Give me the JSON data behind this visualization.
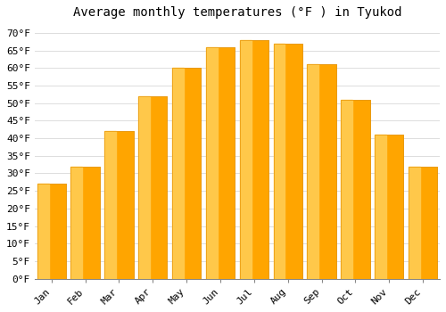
{
  "title": "Average monthly temperatures (°F ) in Tyukod",
  "months": [
    "Jan",
    "Feb",
    "Mar",
    "Apr",
    "May",
    "Jun",
    "Jul",
    "Aug",
    "Sep",
    "Oct",
    "Nov",
    "Dec"
  ],
  "values": [
    27,
    32,
    42,
    52,
    60,
    66,
    68,
    67,
    61,
    51,
    41,
    32
  ],
  "bar_color_main": "#FFA500",
  "bar_color_light": "#FFC84A",
  "bar_color_edge": "#E8960A",
  "ylim": [
    0,
    72
  ],
  "yticks": [
    0,
    5,
    10,
    15,
    20,
    25,
    30,
    35,
    40,
    45,
    50,
    55,
    60,
    65,
    70
  ],
  "background_color": "#FFFFFF",
  "grid_color": "#DDDDDD",
  "title_fontsize": 10,
  "tick_fontsize": 8,
  "font_family": "monospace"
}
